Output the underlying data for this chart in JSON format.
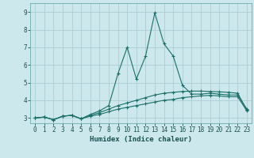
{
  "xlabel": "Humidex (Indice chaleur)",
  "background_color": "#cce8ec",
  "grid_color": "#aacdd4",
  "line_color": "#1a7068",
  "xlim": [
    -0.5,
    23.5
  ],
  "ylim": [
    2.7,
    9.5
  ],
  "xticks": [
    0,
    1,
    2,
    3,
    4,
    5,
    6,
    7,
    8,
    9,
    10,
    11,
    12,
    13,
    14,
    15,
    16,
    17,
    18,
    19,
    20,
    21,
    22,
    23
  ],
  "yticks": [
    3,
    4,
    5,
    6,
    7,
    8,
    9
  ],
  "line1_x": [
    0,
    1,
    2,
    3,
    4,
    5,
    6,
    7,
    8,
    9,
    10,
    11,
    12,
    13,
    14,
    15,
    16,
    17,
    18,
    19,
    20,
    21,
    22,
    23
  ],
  "line1_y": [
    3.0,
    3.05,
    2.9,
    3.1,
    3.15,
    2.95,
    3.1,
    3.2,
    3.35,
    3.5,
    3.6,
    3.7,
    3.8,
    3.9,
    4.0,
    4.05,
    4.15,
    4.2,
    4.25,
    4.28,
    4.25,
    4.2,
    4.2,
    3.4
  ],
  "line2_x": [
    0,
    1,
    2,
    3,
    4,
    5,
    6,
    7,
    8,
    9,
    10,
    11,
    12,
    13,
    14,
    15,
    16,
    17,
    18,
    19,
    20,
    21,
    22,
    23
  ],
  "line2_y": [
    3.0,
    3.05,
    2.9,
    3.1,
    3.15,
    2.95,
    3.15,
    3.3,
    3.5,
    3.7,
    3.85,
    4.0,
    4.15,
    4.3,
    4.4,
    4.45,
    4.5,
    4.52,
    4.52,
    4.5,
    4.48,
    4.45,
    4.4,
    3.45
  ],
  "line3_x": [
    0,
    1,
    2,
    3,
    4,
    5,
    6,
    7,
    8,
    9,
    10,
    11,
    12,
    13,
    14,
    15,
    16,
    17,
    18,
    19,
    20,
    21,
    22,
    23
  ],
  "line3_y": [
    3.0,
    3.05,
    2.9,
    3.1,
    3.15,
    2.95,
    3.2,
    3.4,
    3.7,
    5.5,
    7.0,
    5.2,
    6.5,
    8.95,
    7.2,
    6.5,
    4.85,
    4.35,
    4.35,
    4.4,
    4.35,
    4.3,
    4.3,
    3.5
  ],
  "marker": "+",
  "markersize": 3,
  "linewidth": 0.8
}
